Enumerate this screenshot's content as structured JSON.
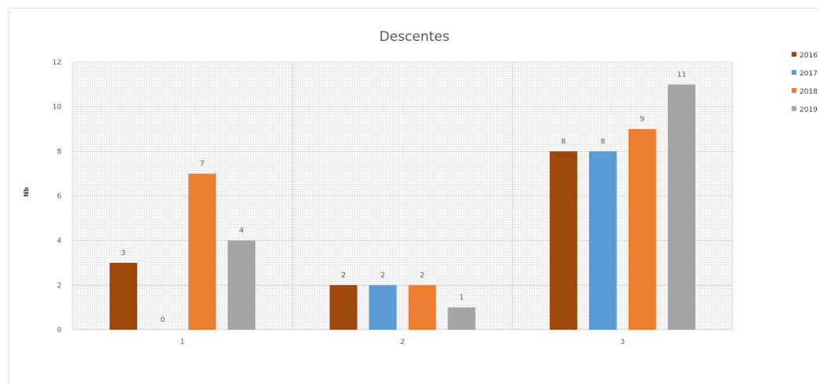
{
  "chart_data": {
    "type": "bar",
    "title": "Descentes",
    "ylabel": "Nb",
    "xlabel": "",
    "categories": [
      "1",
      "2",
      "3"
    ],
    "ylim": [
      0,
      12
    ],
    "yticks": [
      "0",
      "2",
      "4",
      "6",
      "8",
      "10",
      "12"
    ],
    "grid": true,
    "legend_position": "top-right",
    "series": [
      {
        "name": "2016",
        "color": "#9E480E",
        "values": [
          3,
          2,
          8
        ]
      },
      {
        "name": "2017",
        "color": "#5B9BD5",
        "values": [
          0,
          2,
          8
        ]
      },
      {
        "name": "2018",
        "color": "#ED7D31",
        "values": [
          7,
          2,
          9
        ]
      },
      {
        "name": "2019",
        "color": "#A5A5A5",
        "values": [
          4,
          1,
          11
        ]
      }
    ]
  }
}
